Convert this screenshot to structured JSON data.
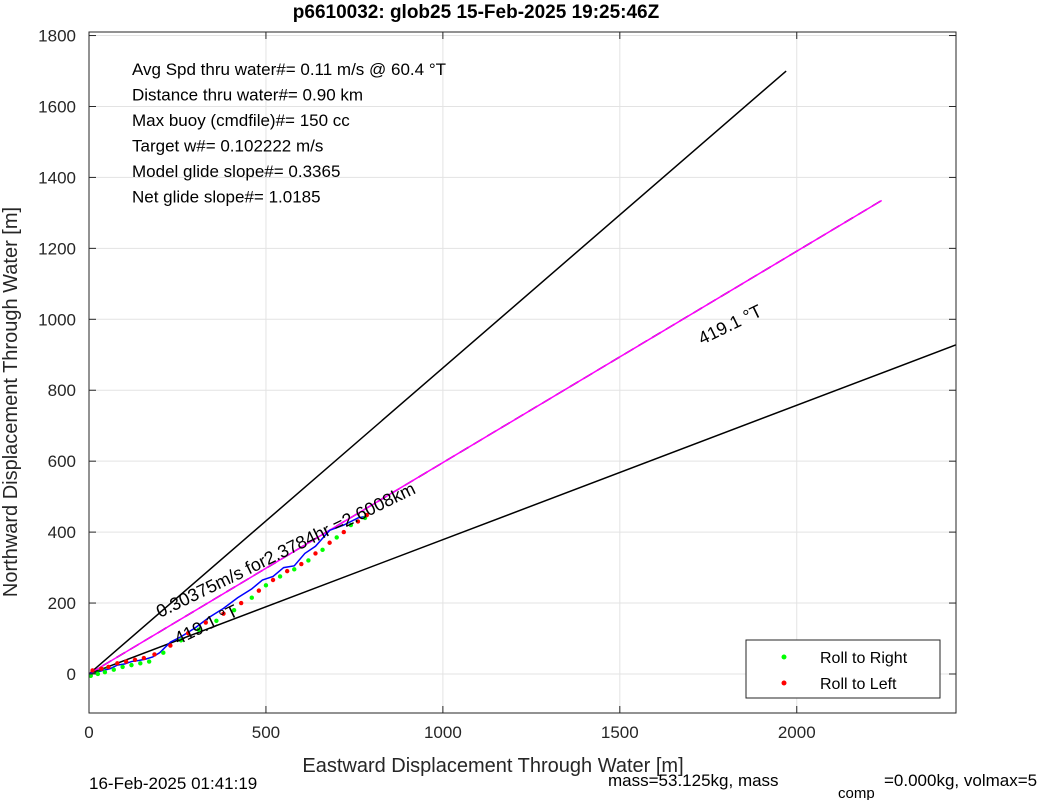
{
  "chart_data": {
    "type": "scatter",
    "title": "p6610032: glob25 15-Feb-2025 19:25:46Z",
    "xlabel": "Eastward Displacement Through Water [m]",
    "ylabel": "Northward Displacement Through Water [m]",
    "xlim": [
      0,
      2450
    ],
    "ylim": [
      -110,
      1810
    ],
    "xticks": [
      0,
      500,
      1000,
      1500,
      2000
    ],
    "yticks": [
      0,
      200,
      400,
      600,
      800,
      1000,
      1200,
      1400,
      1600,
      1800
    ],
    "grid": true,
    "legend_position": "bottom-right",
    "info_lines": [
      "Avg Spd thru water#=  0.11 m/s @  60.4         °T",
      "Distance thru water#=  0.90 km",
      "Max buoy (cmdfile)#= 150 cc",
      "Target w#= 0.102222 m/s",
      "Model glide slope#= 0.3365",
      "Net glide slope#= 1.0185"
    ],
    "annotations": {
      "speed_label": "0.30375m/s for2.3784hr =2.6008km",
      "heading_label_near": "419.1 °T",
      "heading_label_far": "419.1 °T"
    },
    "lines": [
      {
        "role": "cone-upper",
        "color": "#000000",
        "x": [
          0,
          1970
        ],
        "y": [
          0,
          1700
        ]
      },
      {
        "role": "centerline",
        "color": "#000000",
        "dash": true,
        "x": [
          0,
          2240
        ],
        "y": [
          0,
          1335
        ]
      },
      {
        "role": "centerline-overlay",
        "color": "#ff00ff",
        "x": [
          0,
          2240
        ],
        "y": [
          0,
          1335
        ]
      },
      {
        "role": "cone-lower",
        "color": "#000000",
        "x": [
          0,
          2450
        ],
        "y": [
          0,
          928
        ]
      }
    ],
    "track": {
      "color": "#0000ff",
      "x": [
        0,
        20,
        40,
        60,
        80,
        100,
        120,
        140,
        160,
        180,
        200,
        230,
        260,
        300,
        340,
        380,
        420,
        460,
        490,
        520,
        550,
        580,
        610,
        640,
        680,
        720,
        760,
        785
      ],
      "y": [
        0,
        5,
        10,
        15,
        25,
        28,
        35,
        38,
        42,
        48,
        60,
        90,
        105,
        130,
        160,
        185,
        215,
        240,
        265,
        275,
        300,
        305,
        340,
        360,
        405,
        420,
        440,
        445
      ]
    },
    "track_dark": {
      "color": "#006400",
      "x": [
        0,
        10,
        20,
        30,
        40,
        50,
        60
      ],
      "y": [
        -5,
        0,
        5,
        10,
        15,
        18,
        20
      ]
    },
    "series": [
      {
        "name": "Roll to Right",
        "color": "#00ff00",
        "x": [
          5,
          25,
          45,
          70,
          95,
          120,
          145,
          170,
          210,
          260,
          310,
          360,
          410,
          460,
          500,
          540,
          580,
          620,
          660,
          700,
          740,
          780
        ],
        "y": [
          -5,
          0,
          5,
          12,
          20,
          25,
          30,
          35,
          60,
          95,
          125,
          150,
          180,
          215,
          250,
          275,
          295,
          320,
          350,
          385,
          420,
          440
        ]
      },
      {
        "name": "Roll to Left",
        "color": "#ff0000",
        "x": [
          10,
          35,
          55,
          80,
          105,
          130,
          155,
          185,
          230,
          280,
          330,
          380,
          430,
          480,
          520,
          560,
          600,
          640,
          680,
          720,
          760,
          785
        ],
        "y": [
          10,
          15,
          20,
          30,
          35,
          40,
          45,
          55,
          80,
          115,
          145,
          170,
          200,
          235,
          265,
          290,
          310,
          340,
          370,
          400,
          430,
          448
        ]
      }
    ]
  },
  "footer": {
    "left": "16-Feb-2025 01:41:19",
    "right_main": "mass=53.125kg, mass",
    "right_sub": "comp",
    "right_tail": "=0.000kg, volmax=5"
  }
}
